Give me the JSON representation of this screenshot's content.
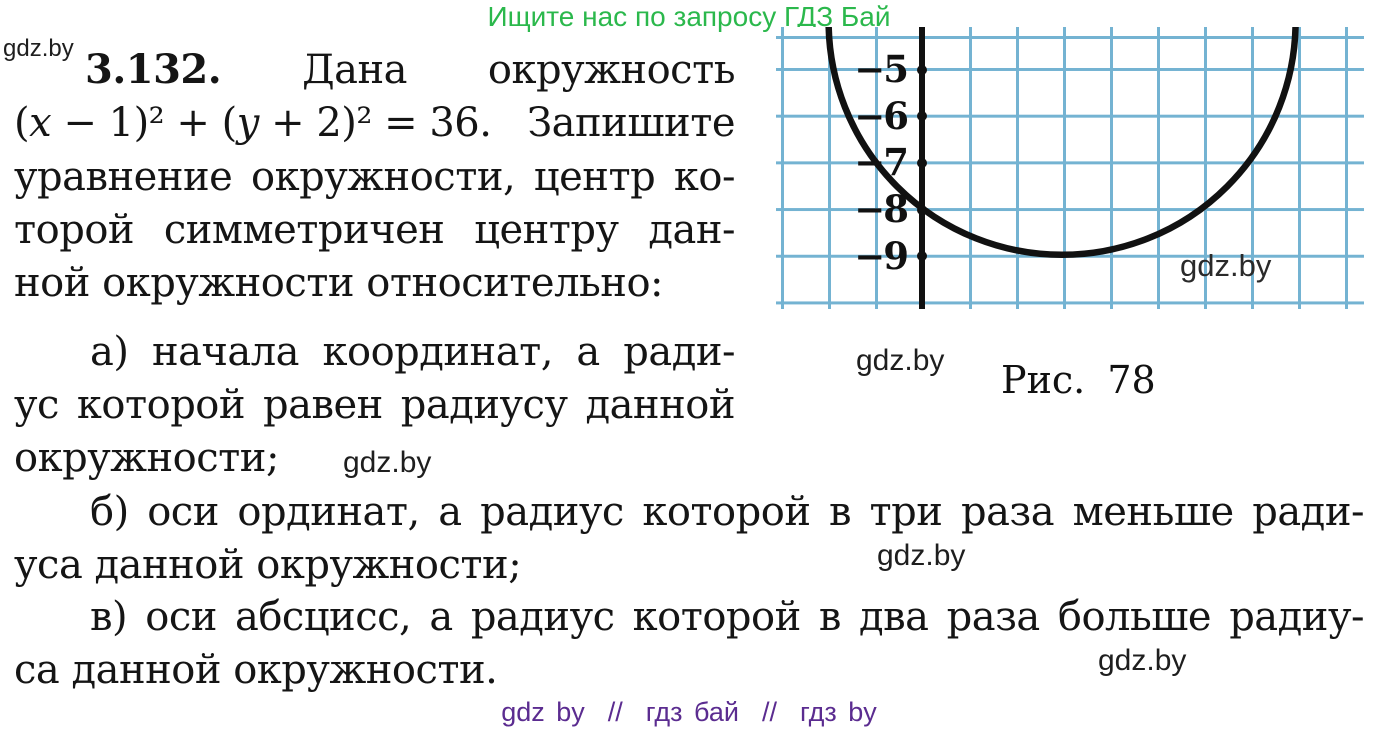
{
  "page": {
    "header_text": "Ищите нас по запросу ГДЗ Бай",
    "footer_text": "gdz by  //  гдз бай  //  гдз by",
    "colors": {
      "header_green": "#2BB84C",
      "footer_purple": "#5B2C90",
      "grid_blue": "#74B3D2",
      "ink": "#151515"
    }
  },
  "watermarks": {
    "top_left": "gdz.by",
    "after_item_a": "gdz.by",
    "after_item_b": "gdz.by",
    "after_item_v": "gdz.by",
    "near_caption": "gdz.by",
    "inside_figure": "gdz.by"
  },
  "problem": {
    "number": "3.132.",
    "line1_word1": "Дана",
    "line1_word2": "окружность",
    "equation_segments": [
      {
        "text": "(",
        "italic": false
      },
      {
        "text": "x",
        "italic": true
      },
      {
        "text": " − 1)² + (",
        "italic": false
      },
      {
        "text": "y",
        "italic": true
      },
      {
        "text": " + 2)² = 36.",
        "italic": false
      }
    ],
    "line2_right": "Запишите",
    "line3": "уравнение окружности, центр ко-",
    "line4": "торой симметричен центру дан-",
    "line5": "ной окружности относительно:",
    "item_a_line1": "а) начала координат, а ради-",
    "item_a_line2": "ус которой равен радиусу данной",
    "item_a_line3": "окружности;",
    "item_b_line1": "б) оси ординат, а радиус которой в три раза меньше ради-",
    "item_b_line2": "уса данной окружности;",
    "item_v_line1": "в) оси абсцисс, а радиус которой в два раза больше радиу-",
    "item_v_line2": "са данной окружности."
  },
  "figure": {
    "caption": "Рис. 78",
    "y_ticks": [
      "−5",
      "−6",
      "−7",
      "−8",
      "−9"
    ]
  },
  "chart_data": {
    "type": "line",
    "title": "Рис. 78",
    "description": "Lower arc of a circle drawn on light-blue squared grid paper; only the vertical y-axis is visible, with dotted tick points",
    "y_axis_ticks": [
      -5,
      -6,
      -7,
      -8,
      -9
    ],
    "tick_labels": [
      "−5",
      "−6",
      "−7",
      "−8",
      "−9"
    ],
    "grid": "on",
    "grid_cell_units": 1,
    "circle": {
      "center_x": 3,
      "center_y": -4,
      "radius": 5
    },
    "curve_minimum": {
      "x": 3,
      "y": -9
    },
    "curve_crosses_y_axis_at": -8,
    "visible_y_range": [
      -9.9,
      -4.1
    ],
    "legend": "none"
  }
}
